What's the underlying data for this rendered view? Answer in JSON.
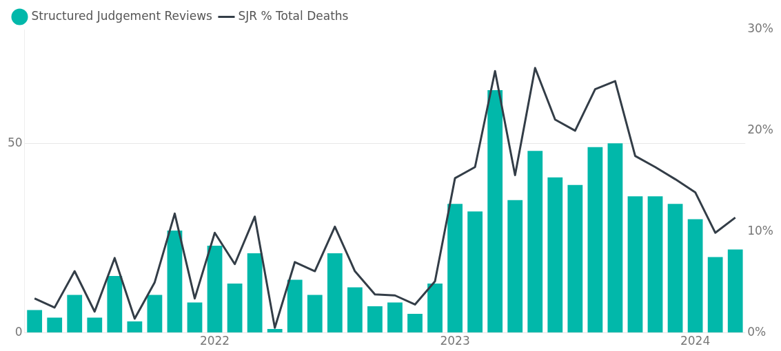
{
  "chart_data": {
    "type": "bar",
    "categories": [
      null,
      null,
      null,
      null,
      null,
      null,
      null,
      null,
      null,
      "2022",
      null,
      null,
      null,
      null,
      null,
      null,
      null,
      null,
      null,
      null,
      null,
      "2023",
      null,
      null,
      null,
      null,
      null,
      null,
      null,
      null,
      null,
      null,
      null,
      "2024",
      null,
      null
    ],
    "series": [
      {
        "name": "Structured Judgement Reviews",
        "color": "#01b8aa",
        "values": [
          6,
          4,
          10,
          4,
          15,
          3,
          10,
          27,
          8,
          23,
          13,
          21,
          1,
          14,
          10,
          21,
          12,
          7,
          8,
          5,
          13,
          34,
          32,
          64,
          35,
          48,
          41,
          39,
          49,
          50,
          36,
          36,
          34,
          30,
          20,
          22
        ]
      },
      {
        "name": "SJR % Total Deaths",
        "type": "line",
        "axis": "y2",
        "color": "#333d47",
        "values": [
          3.4,
          2.5,
          6.1,
          2.1,
          7.4,
          1.4,
          5.0,
          11.8,
          3.4,
          9.9,
          6.8,
          11.5,
          0.5,
          7.0,
          6.1,
          10.5,
          6.1,
          3.8,
          3.7,
          2.8,
          5.1,
          15.3,
          16.4,
          25.9,
          15.6,
          26.2,
          21.1,
          20.0,
          24.1,
          24.9,
          17.5,
          16.4,
          15.2,
          13.9,
          9.9,
          11.4
        ]
      }
    ],
    "ylim": [
      0,
      80
    ],
    "yticks": [
      0,
      50
    ],
    "y2lim": [
      0,
      30
    ],
    "y2ticks": [
      {
        "value": 0,
        "label": "0%"
      },
      {
        "value": 10,
        "label": "10%"
      },
      {
        "value": 20,
        "label": "20%"
      },
      {
        "value": 30,
        "label": "30%"
      }
    ],
    "grid": "y",
    "legend": "top left",
    "marker": "none",
    "line_style": "solid"
  }
}
